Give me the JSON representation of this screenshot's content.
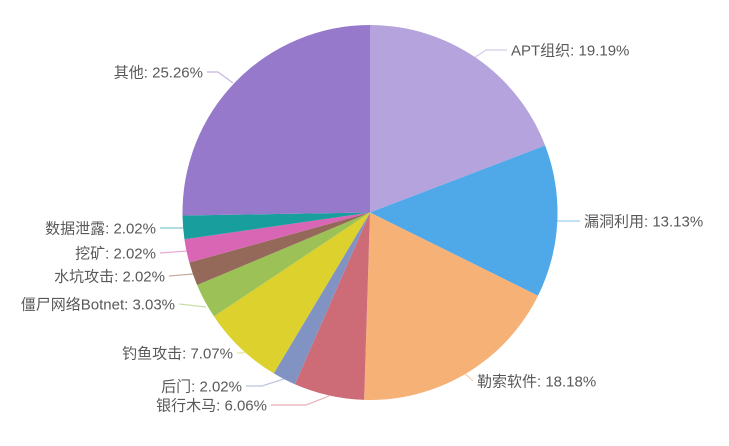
{
  "chart_data": {
    "type": "pie",
    "title": "",
    "legend": "none",
    "label_style": "callout-with-leader-lines",
    "start_angle_deg": 0,
    "direction": "clockwise",
    "background_color": "#ffffff",
    "label_text_color": "#595959",
    "unit": "%",
    "slices": [
      {
        "key": "apt-group",
        "name": "APT组织",
        "value": 19.19,
        "label": "APT组织: 19.19%",
        "color": "#b4a3dc"
      },
      {
        "key": "vuln-exploit",
        "name": "漏洞利用",
        "value": 13.13,
        "label": "漏洞利用: 13.13%",
        "color": "#4fa8e8"
      },
      {
        "key": "ransomware",
        "name": "勒索软件",
        "value": 18.18,
        "label": "勒索软件: 18.18%",
        "color": "#f6b177"
      },
      {
        "key": "banking-trojan",
        "name": "银行木马",
        "value": 6.06,
        "label": "银行木马: 6.06%",
        "color": "#cd6b76"
      },
      {
        "key": "backdoor",
        "name": "后门",
        "value": 2.02,
        "label": "后门: 2.02%",
        "color": "#8193c2"
      },
      {
        "key": "phishing",
        "name": "钓鱼攻击",
        "value": 7.07,
        "label": "钓鱼攻击: 7.07%",
        "color": "#ddd12e"
      },
      {
        "key": "botnet",
        "name": "僵尸网络Botnet",
        "value": 3.03,
        "label": "僵尸网络Botnet: 3.03%",
        "color": "#9cc157"
      },
      {
        "key": "watering-hole",
        "name": "水坑攻击",
        "value": 2.02,
        "label": "水坑攻击: 2.02%",
        "color": "#94695a"
      },
      {
        "key": "mining",
        "name": "挖矿",
        "value": 2.02,
        "label": "挖矿: 2.02%",
        "color": "#d965b5"
      },
      {
        "key": "data-breach",
        "name": "数据泄露",
        "value": 2.02,
        "label": "数据泄露: 2.02%",
        "color": "#199e9e"
      },
      {
        "key": "other",
        "name": "其他",
        "value": 25.26,
        "label": "其他: 25.26%",
        "color": "#9679ca"
      }
    ]
  }
}
